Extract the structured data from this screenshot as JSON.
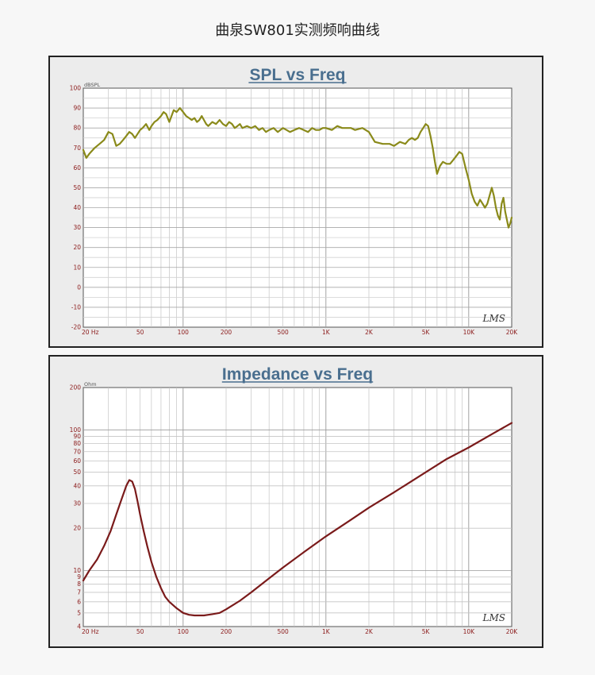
{
  "page": {
    "title": "曲泉SW801实测频响曲线"
  },
  "chart_data": [
    {
      "type": "line",
      "title": "SPL vs Freq",
      "ylabel": "dBSPL",
      "xlabel": "",
      "x_scale": "log",
      "xlim": [
        20,
        20000
      ],
      "ylim": [
        -20,
        100
      ],
      "y_ticks": [
        -20,
        -10,
        0,
        10,
        20,
        30,
        40,
        50,
        60,
        70,
        80,
        90,
        100
      ],
      "x_ticks": [
        20,
        50,
        100,
        200,
        500,
        1000,
        2000,
        5000,
        10000,
        20000
      ],
      "x_tick_labels": [
        "20 Hz",
        "50",
        "100",
        "200",
        "500",
        "1K",
        "2K",
        "5K",
        "10K",
        "20K"
      ],
      "grid": true,
      "watermark": "LMS",
      "line_color": "#8a8a1a",
      "series": [
        {
          "x": [
            20,
            21,
            22,
            24,
            26,
            28,
            30,
            32,
            34,
            36,
            38,
            40,
            42,
            44,
            46,
            48,
            50,
            52,
            55,
            58,
            60,
            63,
            66,
            70,
            73,
            76,
            80,
            83,
            86,
            90,
            95,
            100,
            105,
            110,
            115,
            120,
            125,
            130,
            135,
            140,
            145,
            150,
            160,
            170,
            180,
            190,
            200,
            210,
            220,
            230,
            240,
            250,
            260,
            280,
            300,
            320,
            340,
            360,
            380,
            400,
            430,
            460,
            500,
            530,
            560,
            600,
            650,
            700,
            750,
            800,
            850,
            900,
            950,
            1000,
            1100,
            1200,
            1300,
            1400,
            1500,
            1600,
            1800,
            2000,
            2200,
            2500,
            2800,
            3000,
            3300,
            3600,
            3800,
            4000,
            4200,
            4400,
            4600,
            4800,
            5000,
            5200,
            5400,
            5600,
            5800,
            6000,
            6300,
            6600,
            7000,
            7400,
            7800,
            8200,
            8600,
            9000,
            9500,
            10000,
            10500,
            11000,
            11500,
            12000,
            12500,
            13000,
            13500,
            14000,
            14500,
            15000,
            15500,
            16000,
            16500,
            17000,
            17500,
            18000,
            18500,
            19000,
            19500,
            20000
          ],
          "y": [
            69,
            65,
            67,
            70,
            72,
            74,
            78,
            77,
            71,
            72,
            74,
            76,
            78,
            77,
            75,
            77,
            79,
            80,
            82,
            79,
            81,
            83,
            84,
            86,
            88,
            87,
            83,
            86,
            89,
            88,
            90,
            88,
            86,
            85,
            84,
            85,
            83,
            84,
            86,
            84,
            82,
            81,
            83,
            82,
            84,
            82,
            81,
            83,
            82,
            80,
            81,
            82,
            80,
            81,
            80,
            81,
            79,
            80,
            78,
            79,
            80,
            78,
            80,
            79,
            78,
            79,
            80,
            79,
            78,
            80,
            79,
            79,
            80,
            80,
            79,
            81,
            80,
            80,
            80,
            79,
            80,
            78,
            73,
            72,
            72,
            71,
            73,
            72,
            74,
            75,
            74,
            75,
            78,
            80,
            82,
            81,
            76,
            70,
            63,
            57,
            61,
            63,
            62,
            62,
            64,
            66,
            68,
            67,
            60,
            54,
            47,
            43,
            41,
            44,
            42,
            40,
            42,
            46,
            50,
            46,
            40,
            36,
            34,
            42,
            45,
            38,
            34,
            30,
            32,
            35
          ]
        }
      ]
    },
    {
      "type": "line",
      "title": "Impedance vs Freq",
      "ylabel": "Ohm",
      "xlabel": "",
      "x_scale": "log",
      "y_scale": "log",
      "xlim": [
        20,
        20000
      ],
      "ylim": [
        4,
        200
      ],
      "y_ticks": [
        4,
        5,
        6,
        7,
        8,
        9,
        10,
        20,
        30,
        40,
        50,
        60,
        70,
        80,
        90,
        100,
        200
      ],
      "x_ticks": [
        20,
        50,
        100,
        200,
        500,
        1000,
        2000,
        5000,
        10000,
        20000
      ],
      "x_tick_labels": [
        "20 Hz",
        "50",
        "100",
        "200",
        "500",
        "1K",
        "2K",
        "5K",
        "10K",
        "20K"
      ],
      "grid": true,
      "watermark": "LMS",
      "line_color": "#7a1a1a",
      "series": [
        {
          "x": [
            20,
            22,
            25,
            28,
            31,
            34,
            37,
            40,
            42,
            44,
            46,
            48,
            50,
            53,
            56,
            60,
            65,
            70,
            75,
            80,
            90,
            100,
            110,
            120,
            130,
            140,
            150,
            160,
            180,
            200,
            250,
            300,
            400,
            500,
            700,
            1000,
            1500,
            2000,
            3000,
            5000,
            7000,
            10000,
            15000,
            20000
          ],
          "y": [
            8.5,
            10,
            12,
            15,
            19,
            25,
            32,
            40,
            44,
            43,
            38,
            31,
            25,
            19,
            15,
            11.5,
            9,
            7.5,
            6.5,
            6.0,
            5.4,
            5.0,
            4.85,
            4.8,
            4.8,
            4.8,
            4.85,
            4.9,
            5.0,
            5.3,
            6.1,
            7.0,
            8.8,
            10.5,
            13.5,
            17.5,
            23,
            28,
            36,
            50,
            62,
            75,
            95,
            112
          ]
        }
      ]
    }
  ]
}
